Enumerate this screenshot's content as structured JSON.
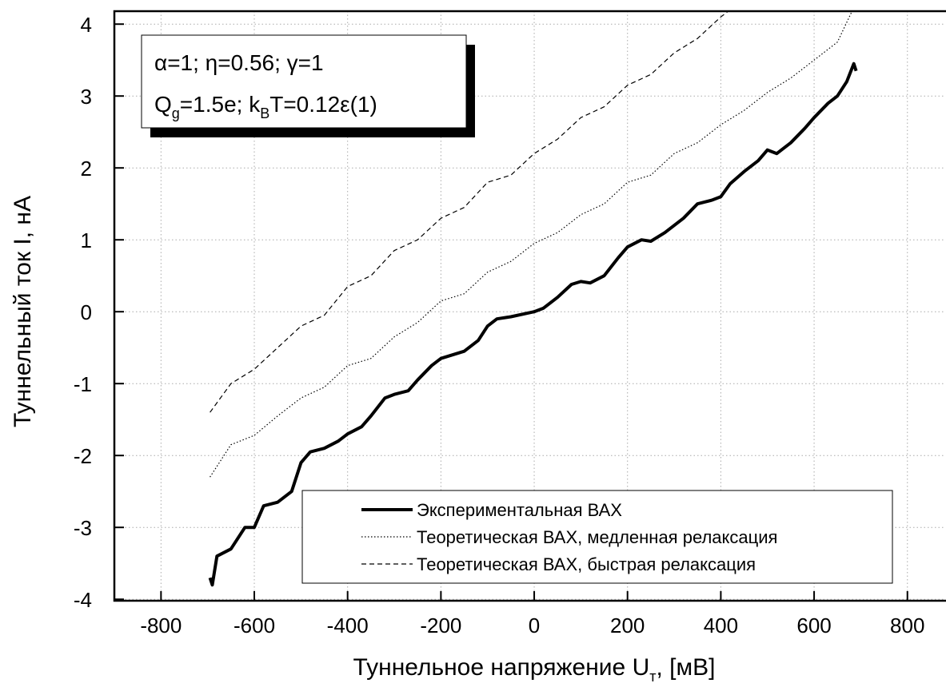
{
  "chart_data": {
    "type": "line",
    "x_label_parts": [
      "Туннельное напряжение U",
      "т",
      ", [мВ]"
    ],
    "y_label": "Туннельный ток I, нА",
    "annotation_line1": "α=1; η=0.56; γ=1",
    "annotation_line2_parts": [
      "Q",
      "g",
      "=1.5e; k",
      "B",
      "T=0.12ε(1)"
    ],
    "xlim": [
      -900,
      881
    ],
    "ylim": [
      -4.02,
      4.18
    ],
    "xticks": [
      -800,
      -600,
      -400,
      -200,
      0,
      200,
      400,
      600,
      800
    ],
    "yticks": [
      -4,
      -3,
      -2,
      -1,
      0,
      1,
      2,
      3,
      4
    ],
    "grid": true,
    "legend": "lower right",
    "series": [
      {
        "name": "Экспериментальная ВАХ",
        "color": "#000000",
        "style": "solid",
        "width": 4,
        "x": [
          -695,
          -690,
          -680,
          -650,
          -620,
          -600,
          -580,
          -550,
          -520,
          -500,
          -480,
          -450,
          -420,
          -400,
          -370,
          -350,
          -320,
          -300,
          -270,
          -250,
          -220,
          -200,
          -150,
          -120,
          -100,
          -80,
          -50,
          0,
          20,
          50,
          80,
          100,
          120,
          150,
          180,
          200,
          230,
          250,
          280,
          320,
          350,
          380,
          400,
          420,
          450,
          480,
          500,
          520,
          550,
          580,
          600,
          630,
          650,
          670,
          685,
          690
        ],
        "values": [
          -3.7,
          -3.8,
          -3.4,
          -3.3,
          -3.0,
          -3.0,
          -2.7,
          -2.65,
          -2.5,
          -2.1,
          -1.95,
          -1.9,
          -1.8,
          -1.7,
          -1.6,
          -1.45,
          -1.2,
          -1.15,
          -1.1,
          -0.95,
          -0.75,
          -0.65,
          -0.55,
          -0.4,
          -0.2,
          -0.1,
          -0.07,
          0,
          0.05,
          0.2,
          0.38,
          0.42,
          0.4,
          0.5,
          0.75,
          0.9,
          1.0,
          0.98,
          1.1,
          1.3,
          1.5,
          1.55,
          1.6,
          1.78,
          1.95,
          2.1,
          2.25,
          2.2,
          2.35,
          2.55,
          2.7,
          2.9,
          3.0,
          3.2,
          3.45,
          3.35
        ]
      },
      {
        "name": "Теоретическая ВАХ, медленная релаксация",
        "color": "#000000",
        "style": "dotted",
        "width": 1.2,
        "x": [
          -695,
          -650,
          -600,
          -550,
          -500,
          -450,
          -400,
          -350,
          -300,
          -250,
          -200,
          -150,
          -100,
          -50,
          0,
          50,
          100,
          150,
          200,
          250,
          300,
          350,
          400,
          450,
          500,
          550,
          600,
          650,
          690
        ],
        "values": [
          -2.3,
          -1.85,
          -1.72,
          -1.45,
          -1.2,
          -1.05,
          -0.75,
          -0.65,
          -0.35,
          -0.15,
          0.15,
          0.25,
          0.55,
          0.7,
          0.95,
          1.1,
          1.35,
          1.5,
          1.8,
          1.9,
          2.2,
          2.35,
          2.6,
          2.8,
          3.05,
          3.25,
          3.5,
          3.75,
          4.3
        ]
      },
      {
        "name": "Теоретическая ВАХ, быстрая релаксация",
        "color": "#000000",
        "style": "dashed",
        "width": 1.2,
        "x": [
          -695,
          -650,
          -600,
          -550,
          -500,
          -450,
          -400,
          -350,
          -300,
          -250,
          -200,
          -150,
          -100,
          -50,
          0,
          50,
          100,
          150,
          200,
          250,
          300,
          350,
          400,
          430
        ],
        "values": [
          -1.4,
          -1.0,
          -0.8,
          -0.5,
          -0.2,
          -0.05,
          0.35,
          0.5,
          0.85,
          1.0,
          1.3,
          1.45,
          1.8,
          1.9,
          2.2,
          2.4,
          2.7,
          2.85,
          3.15,
          3.3,
          3.6,
          3.8,
          4.1,
          4.25
        ]
      }
    ]
  }
}
